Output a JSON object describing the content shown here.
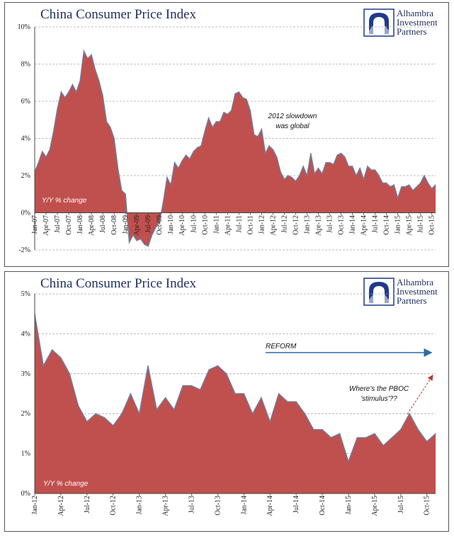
{
  "colors": {
    "fill": "#c0504d",
    "line": "#6d7fa3",
    "title": "#1f2f5f",
    "logo": "#1f3a8a",
    "arrow_blue": "#2e6aa8",
    "arrow_red": "#c0392b",
    "grid": "#aaaaaa"
  },
  "logo": {
    "line1": "Alhambra",
    "line2": "Investment",
    "line3": "Partners",
    "icon": "alhambra-logo-icon"
  },
  "chart_data": [
    {
      "type": "area",
      "title": "China Consumer Price Index",
      "unit_label": "Y/Y % change",
      "annotation": "2012 slowdown was global",
      "annotation_lines": [
        "2012 slowdown",
        "was global"
      ],
      "ylim": [
        -2,
        10
      ],
      "yticks": [
        -2,
        0,
        2,
        4,
        6,
        8,
        10
      ],
      "yticklabels": [
        "-2%",
        "0%",
        "2%",
        "4%",
        "6%",
        "8%",
        "10%"
      ],
      "grid": true,
      "x_start": "Jan-07",
      "xticklabels": [
        "Jan-07",
        "Apr-07",
        "Jul-07",
        "Oct-07",
        "Jan-08",
        "Apr-08",
        "Jul-08",
        "Oct-08",
        "Jan-09",
        "Apr-09",
        "Jul-09",
        "Oct-09",
        "Jan-10",
        "Apr-10",
        "Jul-10",
        "Oct-10",
        "Jan-11",
        "Apr-11",
        "Jul-11",
        "Oct-11",
        "Jan-12",
        "Apr-12",
        "Jul-12",
        "Oct-12",
        "Jan-13",
        "Apr-13",
        "Jul-13",
        "Oct-13",
        "Jan-14",
        "Apr-14",
        "Jul-14",
        "Oct-14",
        "Jan-15",
        "Apr-15",
        "Jul-15",
        "Oct-15"
      ],
      "values": [
        2.2,
        2.7,
        3.3,
        3.0,
        3.4,
        4.4,
        5.6,
        6.5,
        6.2,
        6.5,
        6.9,
        6.5,
        7.1,
        8.7,
        8.3,
        8.5,
        7.7,
        7.1,
        6.3,
        4.9,
        4.6,
        4.0,
        2.4,
        1.2,
        1.0,
        -1.6,
        -1.2,
        -1.5,
        -1.4,
        -1.7,
        -1.8,
        -1.2,
        -0.8,
        -0.5,
        0.6,
        1.9,
        1.5,
        2.7,
        2.4,
        2.8,
        3.1,
        2.9,
        3.3,
        3.5,
        3.6,
        4.4,
        5.1,
        4.6,
        4.9,
        4.9,
        5.4,
        5.3,
        5.5,
        6.4,
        6.5,
        6.2,
        6.1,
        5.5,
        4.2,
        4.1,
        4.5,
        3.2,
        3.6,
        3.4,
        3.0,
        2.2,
        1.8,
        2.0,
        1.9,
        1.7,
        2.0,
        2.5,
        2.0,
        3.2,
        2.1,
        2.4,
        2.1,
        2.7,
        2.7,
        2.6,
        3.1,
        3.2,
        3.0,
        2.5,
        2.5,
        2.0,
        2.4,
        1.8,
        2.5,
        2.3,
        2.3,
        2.0,
        1.6,
        1.6,
        1.4,
        1.5,
        0.8,
        1.4,
        1.4,
        1.5,
        1.2,
        1.4,
        1.6,
        2.0,
        1.6,
        1.3,
        1.5
      ]
    },
    {
      "type": "area",
      "title": "China Consumer Price Index",
      "unit_label": "Y/Y % change",
      "annotation": "Where's the PBOC 'stimulus'??",
      "annotation_lines": [
        "Where's the PBOC",
        "'stimulus'??"
      ],
      "reform_label": "REFORM",
      "ylim": [
        0,
        5
      ],
      "yticks": [
        0,
        1,
        2,
        3,
        4,
        5
      ],
      "yticklabels": [
        "0%",
        "1%",
        "2%",
        "3%",
        "4%",
        "5%"
      ],
      "grid": true,
      "x_start": "Jan-12",
      "xticklabels": [
        "Jan-12",
        "Apr-12",
        "Jul-12",
        "Oct-12",
        "Jan-13",
        "Apr-13",
        "Jul-13",
        "Oct-13",
        "Jan-14",
        "Apr-14",
        "Jul-14",
        "Oct-14",
        "Jan-15",
        "Apr-15",
        "Jul-15",
        "Oct-15"
      ],
      "values": [
        4.5,
        3.2,
        3.6,
        3.4,
        3.0,
        2.2,
        1.8,
        2.0,
        1.9,
        1.7,
        2.0,
        2.5,
        2.0,
        3.2,
        2.1,
        2.4,
        2.1,
        2.7,
        2.7,
        2.6,
        3.1,
        3.2,
        3.0,
        2.5,
        2.5,
        2.0,
        2.4,
        1.8,
        2.5,
        2.3,
        2.3,
        2.0,
        1.6,
        1.6,
        1.4,
        1.5,
        0.8,
        1.4,
        1.4,
        1.5,
        1.2,
        1.4,
        1.6,
        2.0,
        1.6,
        1.3,
        1.5
      ]
    }
  ]
}
